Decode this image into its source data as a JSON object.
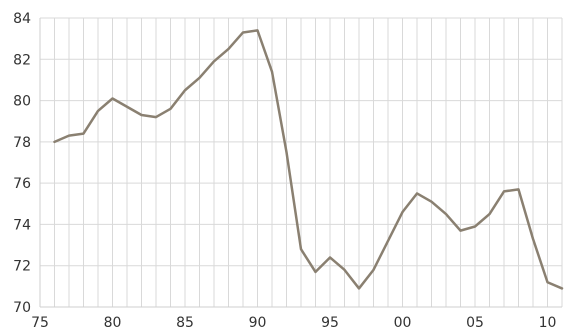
{
  "chart_data": {
    "type": "line",
    "title": "",
    "xlabel": "",
    "ylabel": "",
    "x": [
      1976,
      1977,
      1978,
      1979,
      1980,
      1981,
      1982,
      1983,
      1984,
      1985,
      1986,
      1987,
      1988,
      1989,
      1990,
      1991,
      1992,
      1993,
      1994,
      1995,
      1996,
      1997,
      1998,
      1999,
      2000,
      2001,
      2002,
      2003,
      2004,
      2005,
      2006,
      2007,
      2008,
      2009,
      2010,
      2011
    ],
    "series": [
      {
        "color": "#8a8071",
        "values": [
          78.0,
          78.3,
          78.4,
          79.5,
          80.1,
          79.7,
          79.3,
          79.2,
          79.6,
          80.5,
          81.1,
          81.9,
          82.5,
          83.3,
          83.4,
          81.4,
          77.5,
          72.8,
          71.7,
          72.4,
          71.8,
          70.9,
          71.8,
          73.2,
          74.6,
          75.5,
          75.1,
          74.5,
          73.7,
          73.9,
          74.5,
          75.6,
          75.7,
          73.3,
          71.2,
          70.9
        ]
      }
    ],
    "xlim": [
      1975,
      2011
    ],
    "ylim": [
      70,
      84
    ],
    "x_ticks": [
      1975,
      1980,
      1985,
      1990,
      1995,
      2000,
      2005,
      2010
    ],
    "x_tick_labels": [
      "75",
      "80",
      "85",
      "90",
      "95",
      "00",
      "05",
      "10"
    ],
    "y_ticks": [
      70,
      72,
      74,
      76,
      78,
      80,
      82,
      84
    ],
    "y_tick_labels": [
      "70",
      "72",
      "74",
      "76",
      "78",
      "80",
      "82",
      "84"
    ],
    "grid": true,
    "grid_color": "#d9d9d9"
  }
}
